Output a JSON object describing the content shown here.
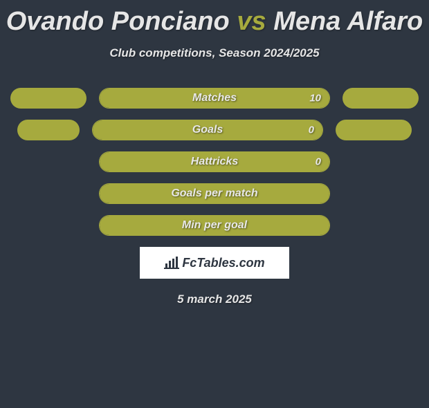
{
  "title": {
    "player1": "Ovando Ponciano",
    "vs": "vs",
    "player2": "Mena Alfaro",
    "color_player": "#e6e6e6",
    "color_vs": "#a6aa3e",
    "fontsize": 38
  },
  "subtitle": {
    "text": "Club competitions, Season 2024/2025",
    "color": "#e6e6e6",
    "fontsize": 17
  },
  "chart": {
    "type": "bar-comparison",
    "track_width": 334,
    "track_height": 30,
    "track_border_color": "#a6aa3e",
    "fill_color": "#a6aa3e",
    "pill_left_width": 110,
    "pill_right_width": 110,
    "pill_color": "#a6aa3e",
    "background_color": "#2e3641",
    "label_color": "#e8e8e8",
    "label_fontsize": 16,
    "value_color": "#e8e8e8",
    "value_fontsize": 15,
    "rows": [
      {
        "label": "Matches",
        "value": "10",
        "fill_pct": 100,
        "show_left_pill": true,
        "show_right_pill": true,
        "left_pill_width": 110,
        "right_pill_width": 110,
        "show_value": true
      },
      {
        "label": "Goals",
        "value": "0",
        "fill_pct": 100,
        "show_left_pill": true,
        "show_right_pill": true,
        "left_pill_width": 90,
        "right_pill_width": 110,
        "show_value": true
      },
      {
        "label": "Hattricks",
        "value": "0",
        "fill_pct": 100,
        "show_left_pill": false,
        "show_right_pill": false,
        "left_pill_width": 0,
        "right_pill_width": 0,
        "show_value": true
      },
      {
        "label": "Goals per match",
        "value": "",
        "fill_pct": 100,
        "show_left_pill": false,
        "show_right_pill": false,
        "left_pill_width": 0,
        "right_pill_width": 0,
        "show_value": false
      },
      {
        "label": "Min per goal",
        "value": "",
        "fill_pct": 100,
        "show_left_pill": false,
        "show_right_pill": false,
        "left_pill_width": 0,
        "right_pill_width": 0,
        "show_value": false
      }
    ]
  },
  "logo": {
    "text": "FcTables.com",
    "bg_color": "#ffffff",
    "text_color": "#2e3641",
    "fontsize": 18
  },
  "date": {
    "text": "5 march 2025",
    "color": "#e6e6e6",
    "fontsize": 17
  }
}
